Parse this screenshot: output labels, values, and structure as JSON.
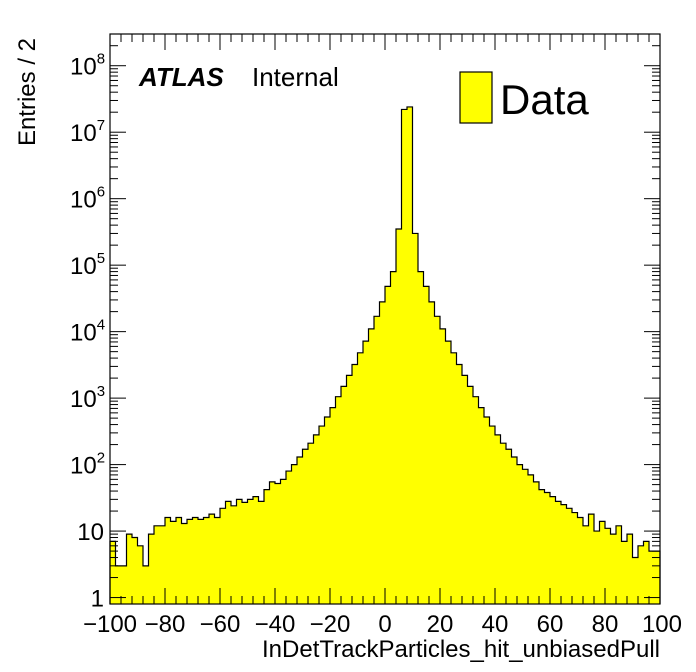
{
  "chart_data": {
    "type": "bar",
    "title": "",
    "xlabel": "InDetTrackParticles_hit_unbiasedPull",
    "ylabel": "Entries / 2",
    "xlim": [
      -100,
      100
    ],
    "ylim": [
      0.8,
      300000000.0
    ],
    "y_scale": "log",
    "bin_width": 2,
    "x_tick_labels": [
      "−100",
      "−80",
      "−60",
      "−40",
      "−20",
      "0",
      "20",
      "40",
      "60",
      "80",
      "100"
    ],
    "x_tick_values": [
      -100,
      -80,
      -60,
      -40,
      -20,
      0,
      20,
      40,
      60,
      80,
      100
    ],
    "y_ticks": [
      {
        "value": 1,
        "base": "1",
        "exp": ""
      },
      {
        "value": 10,
        "base": "10",
        "exp": ""
      },
      {
        "value": 100,
        "base": "10",
        "exp": "2"
      },
      {
        "value": 1000,
        "base": "10",
        "exp": "3"
      },
      {
        "value": 10000,
        "base": "10",
        "exp": "4"
      },
      {
        "value": 100000,
        "base": "10",
        "exp": "5"
      },
      {
        "value": 1000000,
        "base": "10",
        "exp": "6"
      },
      {
        "value": 10000000,
        "base": "10",
        "exp": "7"
      },
      {
        "value": 100000000,
        "base": "10",
        "exp": "8"
      }
    ],
    "series": [
      {
        "name": "Data",
        "color": "#ffff00",
        "edge_color": "#000000",
        "bin_edges_start": -100,
        "values": [
          7,
          3,
          3,
          9,
          8,
          6,
          3,
          9,
          12,
          12,
          16,
          14,
          16,
          13,
          15,
          16,
          15,
          16,
          18,
          16,
          22,
          28,
          24,
          30,
          27,
          30,
          33,
          28,
          42,
          55,
          52,
          60,
          80,
          100,
          130,
          170,
          210,
          280,
          380,
          520,
          720,
          1050,
          1500,
          2200,
          3200,
          4800,
          7200,
          11000,
          17000,
          28000,
          48000,
          80000,
          350000,
          22000000,
          24000000,
          300000,
          80000,
          48000,
          28000,
          17000,
          11000,
          7200,
          4800,
          3200,
          2200,
          1500,
          1050,
          720,
          520,
          380,
          280,
          210,
          170,
          130,
          100,
          85,
          70,
          55,
          42,
          38,
          33,
          28,
          25,
          22,
          19,
          16,
          12,
          18,
          10,
          14,
          11,
          9,
          12,
          7,
          9,
          4,
          6,
          7,
          5,
          5
        ]
      }
    ],
    "legend": {
      "position": "top-right",
      "entries": [
        "Data"
      ]
    },
    "annotation": {
      "bold": "ATLAS",
      "normal": "Internal"
    },
    "grid": false
  }
}
